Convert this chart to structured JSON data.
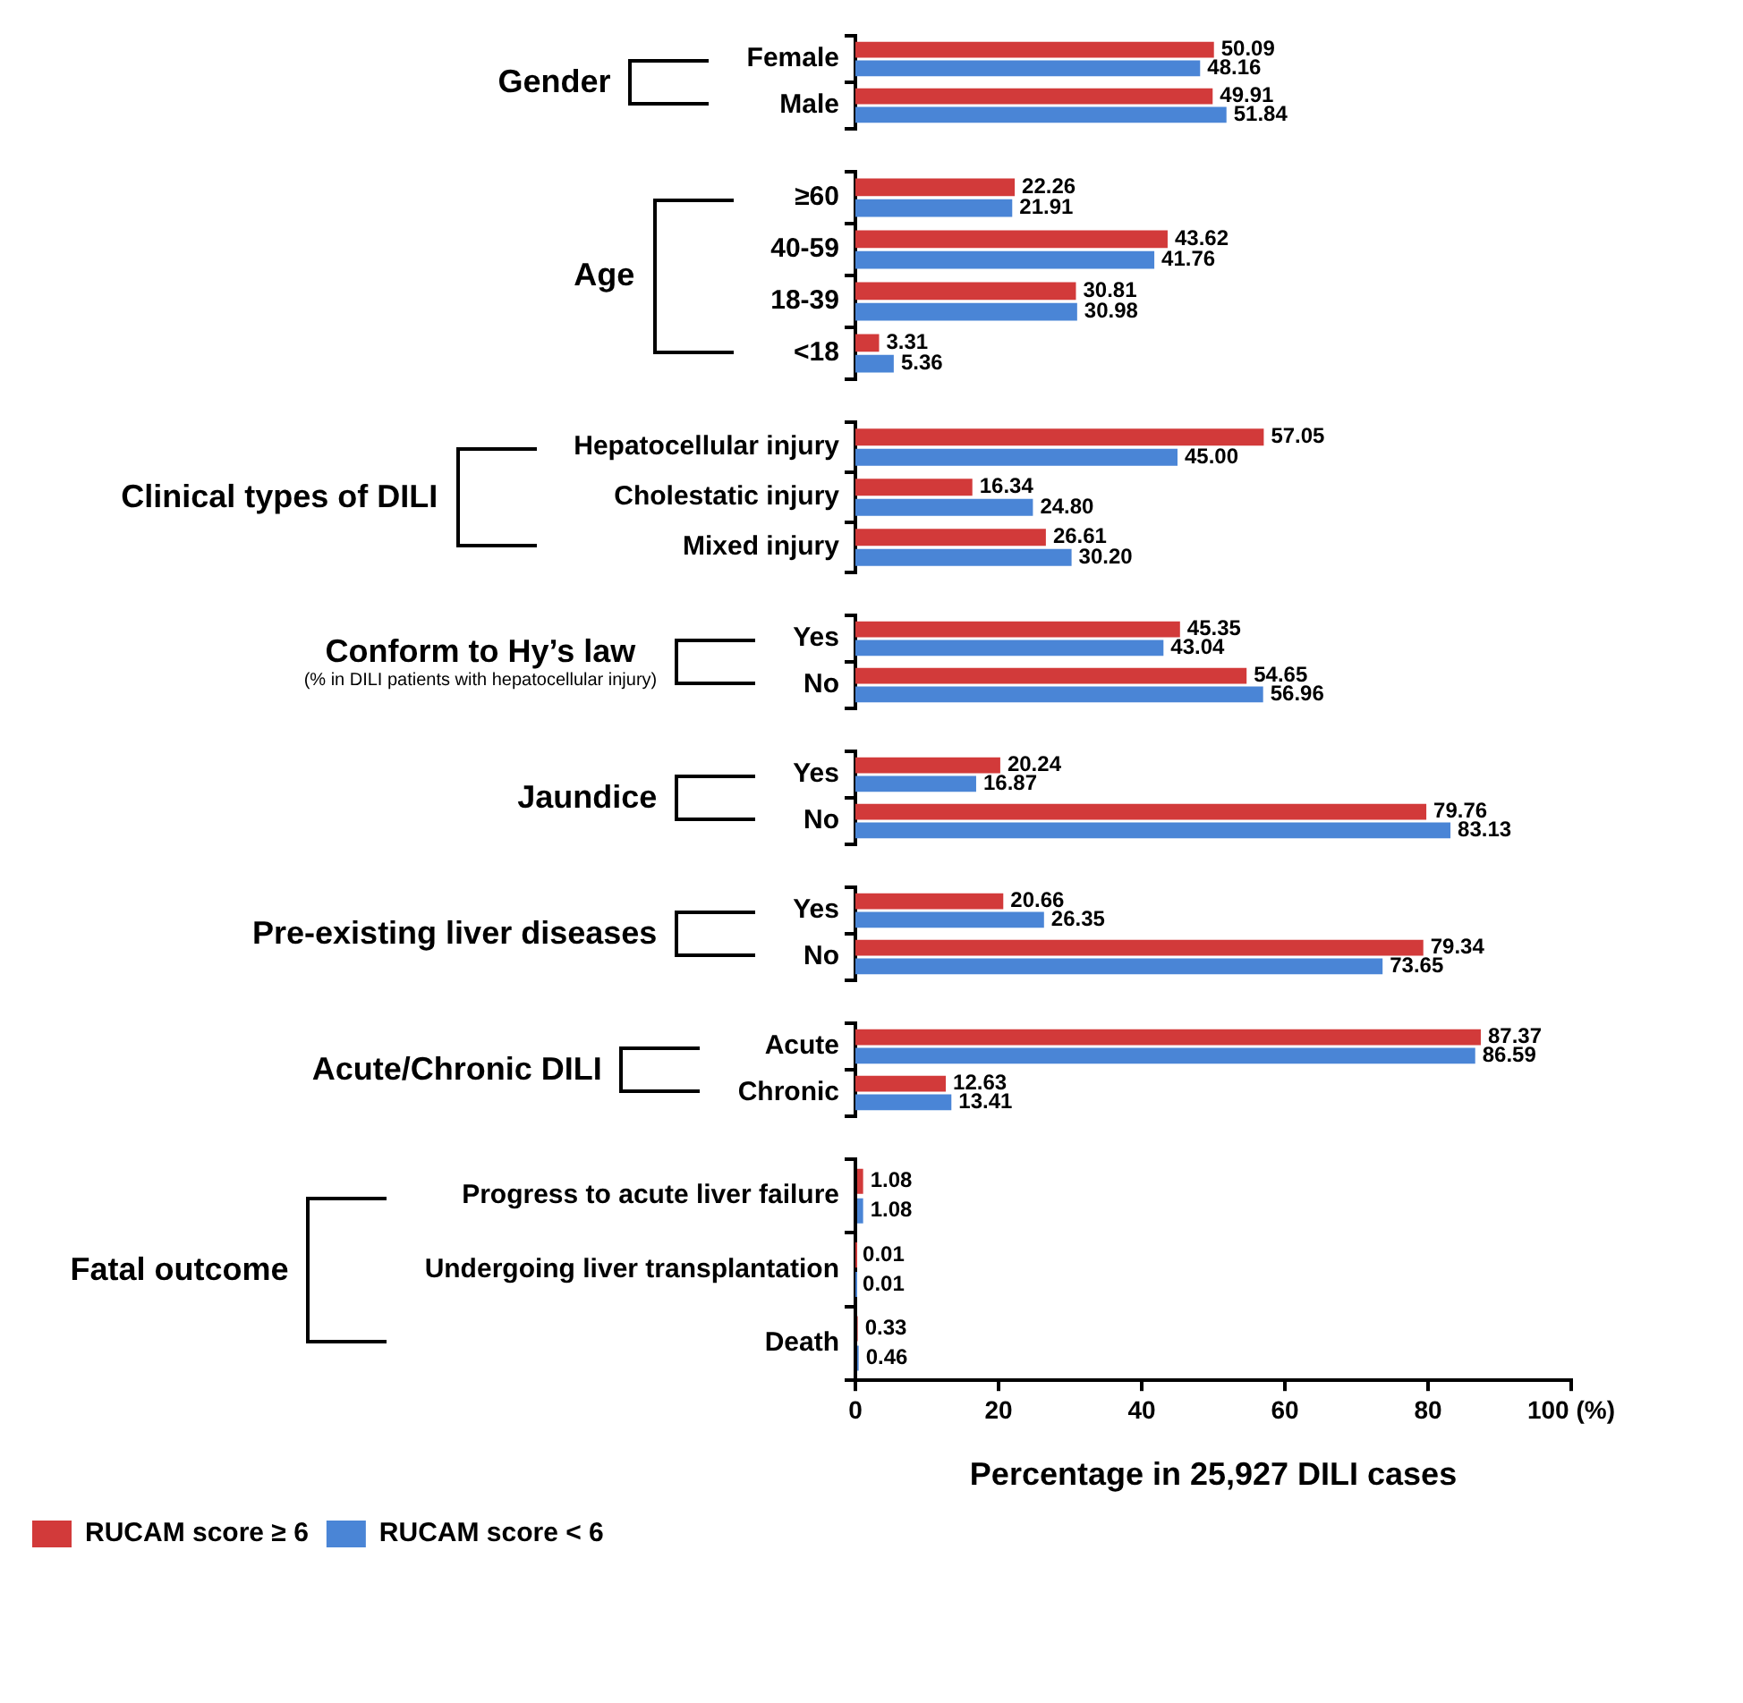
{
  "chart_data": [
    {
      "type": "bar",
      "orientation": "horizontal",
      "ylabel": "Gender",
      "categories": [
        "Female",
        "Male"
      ],
      "xlim": [
        0,
        100
      ],
      "tick_labels": "y",
      "series": [
        {
          "color": "#d23a3a",
          "values": [
            50.09,
            49.91
          ],
          "value_labels": [
            "50.09",
            "49.91"
          ]
        },
        {
          "color": "#4a85d6",
          "values": [
            48.16,
            51.84
          ],
          "value_labels": [
            "48.16",
            "51.84"
          ]
        }
      ]
    },
    {
      "type": "bar",
      "orientation": "horizontal",
      "ylabel": "Age",
      "categories": [
        "≥60",
        "40-59",
        "18-39",
        "<18"
      ],
      "xlim": [
        0,
        100
      ],
      "tick_labels": "y",
      "series": [
        {
          "color": "#d23a3a",
          "values": [
            22.26,
            43.62,
            30.81,
            3.31
          ],
          "value_labels": [
            "22.26",
            "43.62",
            "30.81",
            "3.31"
          ]
        },
        {
          "color": "#4a85d6",
          "values": [
            21.91,
            41.76,
            30.98,
            5.36
          ],
          "value_labels": [
            "21.91",
            "41.76",
            "30.98",
            "5.36"
          ]
        }
      ]
    },
    {
      "type": "bar",
      "orientation": "horizontal",
      "ylabel": "Clinical types of DILI",
      "categories": [
        "Hepatocellular injury",
        "Cholestatic injury",
        "Mixed injury"
      ],
      "xlim": [
        0,
        100
      ],
      "tick_labels": "y",
      "series": [
        {
          "color": "#d23a3a",
          "values": [
            57.05,
            16.34,
            26.61
          ],
          "value_labels": [
            "57.05",
            "16.34",
            "26.61"
          ]
        },
        {
          "color": "#4a85d6",
          "values": [
            45.0,
            24.8,
            30.2
          ],
          "value_labels": [
            "45.00",
            "24.80",
            "30.20"
          ]
        }
      ]
    },
    {
      "type": "bar",
      "orientation": "horizontal",
      "ylabel": "Conform to Hy’s law",
      "annotations": [
        "(% in DILI patients with hepatocellular injury)"
      ],
      "categories": [
        "Yes",
        "No"
      ],
      "xlim": [
        0,
        100
      ],
      "tick_labels": "y",
      "series": [
        {
          "color": "#d23a3a",
          "values": [
            45.35,
            54.65
          ],
          "value_labels": [
            "45.35",
            "54.65"
          ]
        },
        {
          "color": "#4a85d6",
          "values": [
            43.04,
            56.96
          ],
          "value_labels": [
            "43.04",
            "56.96"
          ]
        }
      ]
    },
    {
      "type": "bar",
      "orientation": "horizontal",
      "ylabel": "Jaundice",
      "categories": [
        "Yes",
        "No"
      ],
      "xlim": [
        0,
        100
      ],
      "tick_labels": "y",
      "series": [
        {
          "color": "#d23a3a",
          "values": [
            20.24,
            79.76
          ],
          "value_labels": [
            "20.24",
            "79.76"
          ]
        },
        {
          "color": "#4a85d6",
          "values": [
            16.87,
            83.13
          ],
          "value_labels": [
            "16.87",
            "83.13"
          ]
        }
      ]
    },
    {
      "type": "bar",
      "orientation": "horizontal",
      "ylabel": "Pre-existing liver diseases",
      "categories": [
        "Yes",
        "No"
      ],
      "xlim": [
        0,
        100
      ],
      "tick_labels": "y",
      "series": [
        {
          "color": "#d23a3a",
          "values": [
            20.66,
            79.34
          ],
          "value_labels": [
            "20.66",
            "79.34"
          ]
        },
        {
          "color": "#4a85d6",
          "values": [
            26.35,
            73.65
          ],
          "value_labels": [
            "26.35",
            "73.65"
          ]
        }
      ]
    },
    {
      "type": "bar",
      "orientation": "horizontal",
      "ylabel": "Acute/Chronic DILI",
      "categories": [
        "Acute",
        "Chronic"
      ],
      "xlim": [
        0,
        100
      ],
      "tick_labels": "y",
      "series": [
        {
          "color": "#d23a3a",
          "values": [
            87.37,
            12.63
          ],
          "value_labels": [
            "87.37",
            "12.63"
          ]
        },
        {
          "color": "#4a85d6",
          "values": [
            86.59,
            13.41
          ],
          "value_labels": [
            "86.59",
            "13.41"
          ]
        }
      ]
    },
    {
      "type": "bar",
      "orientation": "horizontal",
      "ylabel": "Fatal outcome",
      "categories": [
        "Progress to acute liver failure",
        "Undergoing liver transplantation",
        "Death"
      ],
      "xlim": [
        0,
        100
      ],
      "xticks": [
        0,
        20,
        40,
        60,
        80,
        {
          "value": 100,
          "label": "100 (%)"
        }
      ],
      "xlabel": "Percentage in 25,927 DILI cases",
      "legend": "bottom left",
      "series": [
        {
          "name": "RUCAM score ≥ 6",
          "color": "#d23a3a",
          "values": [
            1.08,
            0.01,
            0.33
          ],
          "value_labels": [
            "1.08",
            "0.01",
            "0.33"
          ]
        },
        {
          "name": "RUCAM score < 6",
          "color": "#4a85d6",
          "values": [
            1.08,
            0.01,
            0.46
          ],
          "value_labels": [
            "1.08",
            "0.01",
            "0.46"
          ]
        }
      ]
    }
  ]
}
